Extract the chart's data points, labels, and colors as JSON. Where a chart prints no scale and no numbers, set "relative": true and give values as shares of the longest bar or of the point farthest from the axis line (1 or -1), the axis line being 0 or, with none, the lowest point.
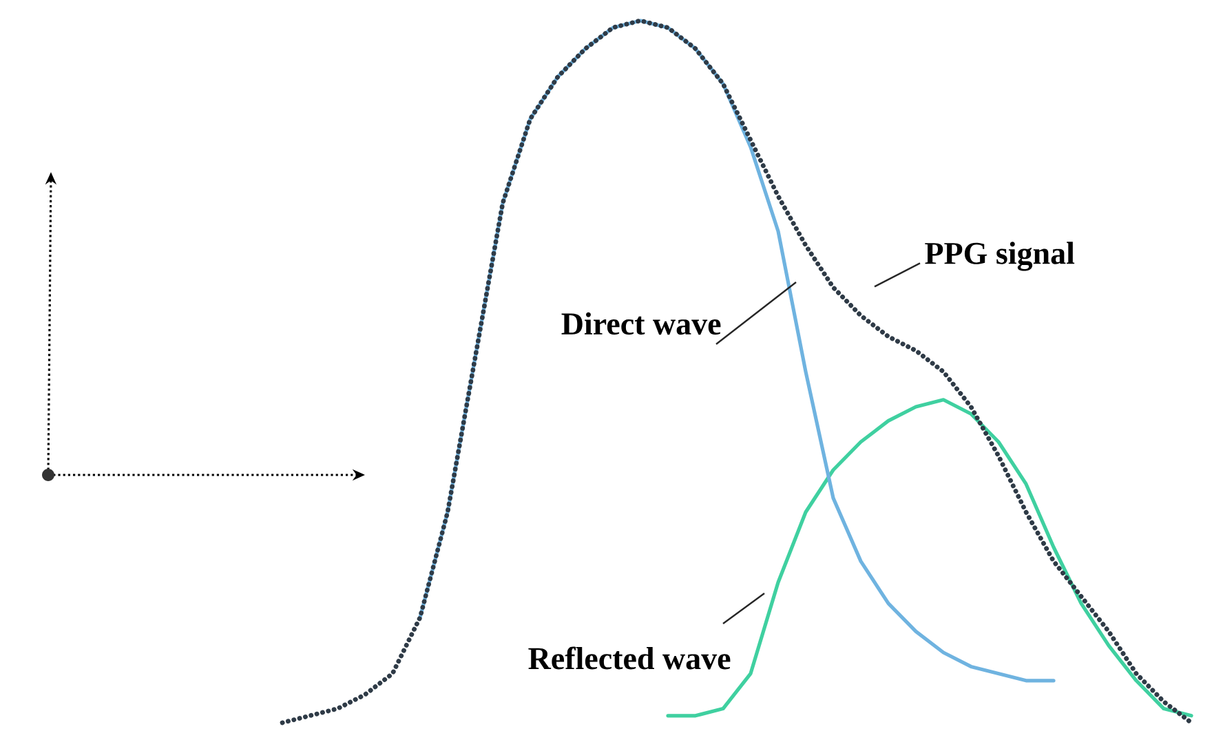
{
  "chart_data": {
    "type": "line",
    "relative": true,
    "categories": [
      null,
      null,
      null,
      null,
      null,
      null,
      null,
      null,
      null,
      null,
      null,
      null,
      null,
      null,
      null,
      null,
      null,
      null,
      null,
      null,
      null,
      null,
      null,
      null,
      null,
      null,
      null,
      null,
      null,
      null,
      null,
      null,
      null,
      null
    ],
    "series": [
      {
        "name": "PPG signal",
        "color": "#2f3b47",
        "line_style": "dotted",
        "values": [
          0,
          0.01,
          0.02,
          0.04,
          0.07,
          0.15,
          0.3,
          0.52,
          0.74,
          0.86,
          0.92,
          0.96,
          0.99,
          1.0,
          0.99,
          0.96,
          0.91,
          0.83,
          0.75,
          0.68,
          0.62,
          0.58,
          0.55,
          0.53,
          0.5,
          0.45,
          0.38,
          0.3,
          0.23,
          0.18,
          0.13,
          0.07,
          0.03,
          0.0
        ]
      },
      {
        "name": "Direct wave",
        "color": "#6fb3e0",
        "line_style": "solid",
        "values": [
          null,
          null,
          null,
          null,
          null,
          0.15,
          0.3,
          0.52,
          0.74,
          0.86,
          0.92,
          0.96,
          0.99,
          1.0,
          0.99,
          0.96,
          0.91,
          0.82,
          0.7,
          0.5,
          0.32,
          0.23,
          0.17,
          0.13,
          0.1,
          0.08,
          0.07,
          0.06,
          0.06,
          null,
          null,
          null,
          null,
          null
        ]
      },
      {
        "name": "Reflected wave",
        "color": "#3fd0a0",
        "line_style": "solid",
        "values": [
          null,
          null,
          null,
          null,
          null,
          null,
          null,
          null,
          null,
          null,
          null,
          null,
          null,
          null,
          0.01,
          0.01,
          0.02,
          0.07,
          0.2,
          0.3,
          0.36,
          0.4,
          0.43,
          0.45,
          0.46,
          0.44,
          0.4,
          0.34,
          0.25,
          0.17,
          0.11,
          0.06,
          0.02,
          0.01
        ]
      }
    ]
  }
}
